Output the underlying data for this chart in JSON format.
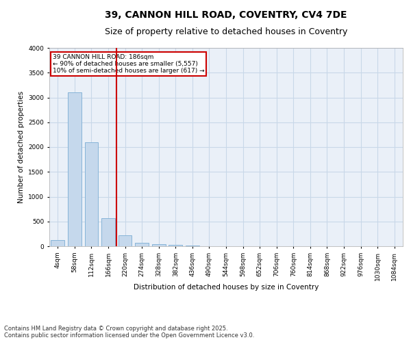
{
  "title": "39, CANNON HILL ROAD, COVENTRY, CV4 7DE",
  "subtitle": "Size of property relative to detached houses in Coventry",
  "xlabel": "Distribution of detached houses by size in Coventry",
  "ylabel": "Number of detached properties",
  "categories": [
    "4sqm",
    "58sqm",
    "112sqm",
    "166sqm",
    "220sqm",
    "274sqm",
    "328sqm",
    "382sqm",
    "436sqm",
    "490sqm",
    "544sqm",
    "598sqm",
    "652sqm",
    "706sqm",
    "760sqm",
    "814sqm",
    "868sqm",
    "922sqm",
    "976sqm",
    "1030sqm",
    "1084sqm"
  ],
  "values": [
    130,
    3100,
    2090,
    570,
    220,
    70,
    40,
    25,
    15,
    0,
    0,
    0,
    0,
    0,
    0,
    0,
    0,
    0,
    0,
    0,
    0
  ],
  "bar_color": "#c5d8ec",
  "bar_edge_color": "#7aadd4",
  "vline_x": 3.5,
  "vline_color": "#cc0000",
  "annotation_box_text": "39 CANNON HILL ROAD: 186sqm\n← 90% of detached houses are smaller (5,557)\n10% of semi-detached houses are larger (617) →",
  "annotation_box_color": "#cc0000",
  "annotation_box_facecolor": "white",
  "ylim": [
    0,
    4000
  ],
  "yticks": [
    0,
    500,
    1000,
    1500,
    2000,
    2500,
    3000,
    3500,
    4000
  ],
  "grid_color": "#c8d8e8",
  "background_color": "#eaf0f8",
  "footnote": "Contains HM Land Registry data © Crown copyright and database right 2025.\nContains public sector information licensed under the Open Government Licence v3.0.",
  "title_fontsize": 10,
  "subtitle_fontsize": 9,
  "label_fontsize": 7.5,
  "tick_fontsize": 6.5,
  "footnote_fontsize": 6
}
